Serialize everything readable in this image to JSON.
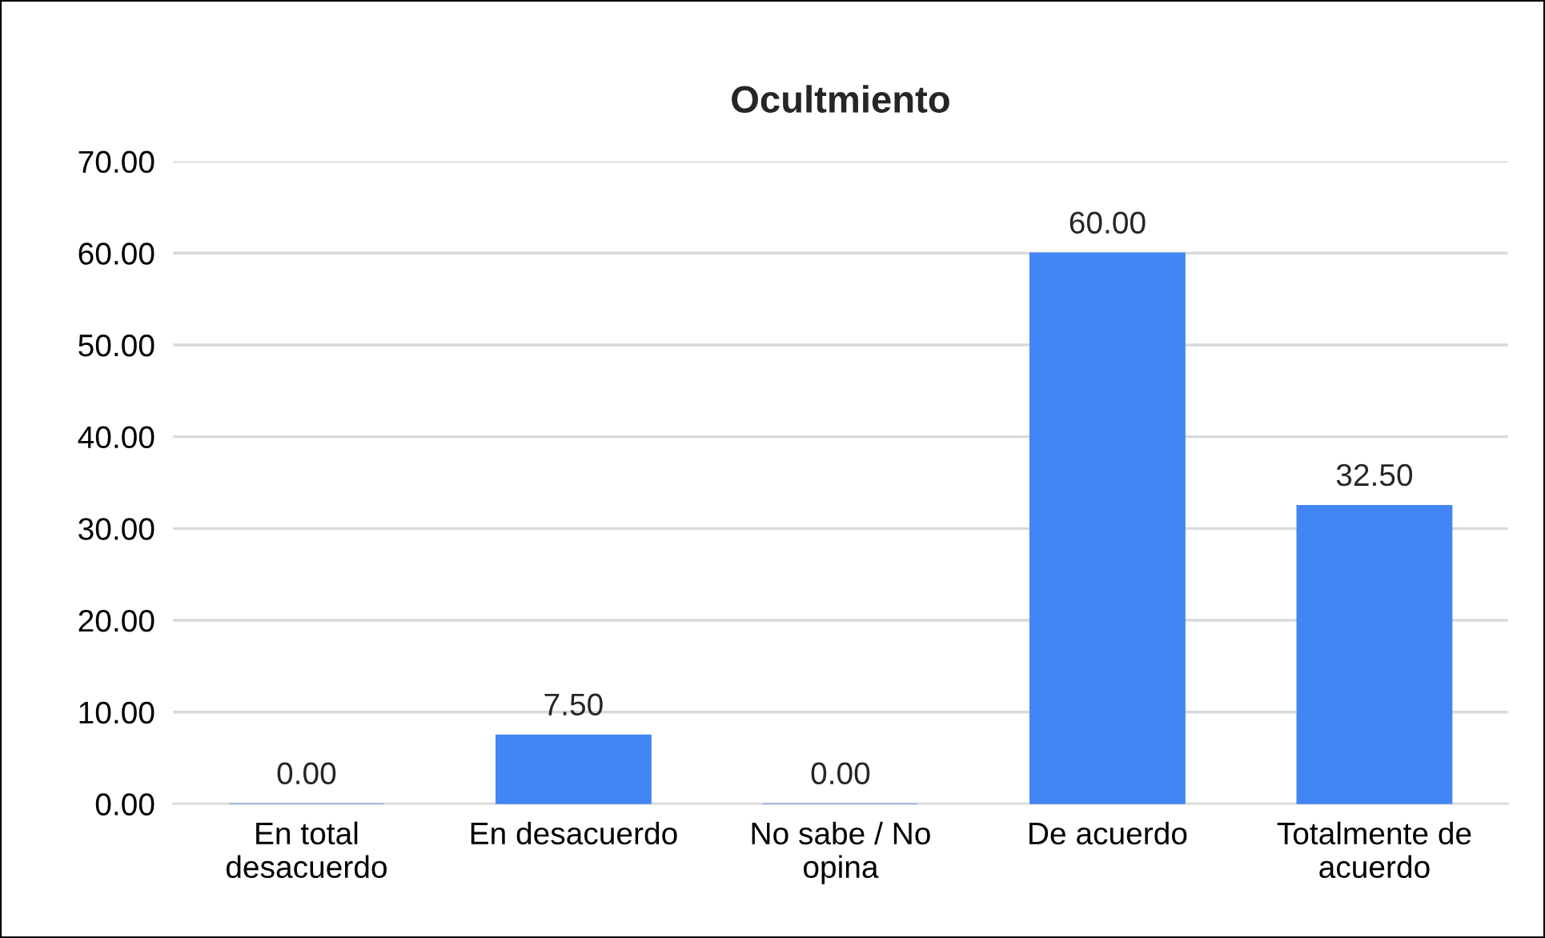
{
  "chart_data": {
    "type": "bar",
    "title": "Ocultmiento",
    "categories": [
      "En total\ndesacuerdo",
      "En desacuerdo",
      "No sabe / No\nopina",
      "De acuerdo",
      "Totalmente de\nacuerdo"
    ],
    "values": [
      0,
      7.5,
      0,
      60,
      32.5
    ],
    "value_labels": [
      "0.00",
      "7.50",
      "0.00",
      "60.00",
      "32.50"
    ],
    "color": "#4285f4",
    "ylim": [
      0,
      70
    ],
    "yticks": [
      {
        "value": 0,
        "label": "0.00"
      },
      {
        "value": 10,
        "label": "10.00"
      },
      {
        "value": 20,
        "label": "20.00"
      },
      {
        "value": 30,
        "label": "30.00"
      },
      {
        "value": 40,
        "label": "40.00"
      },
      {
        "value": 50,
        "label": "50.00"
      },
      {
        "value": 60,
        "label": "60.00"
      },
      {
        "value": 70,
        "label": "70.00"
      }
    ],
    "grid": "y",
    "legend": false
  }
}
